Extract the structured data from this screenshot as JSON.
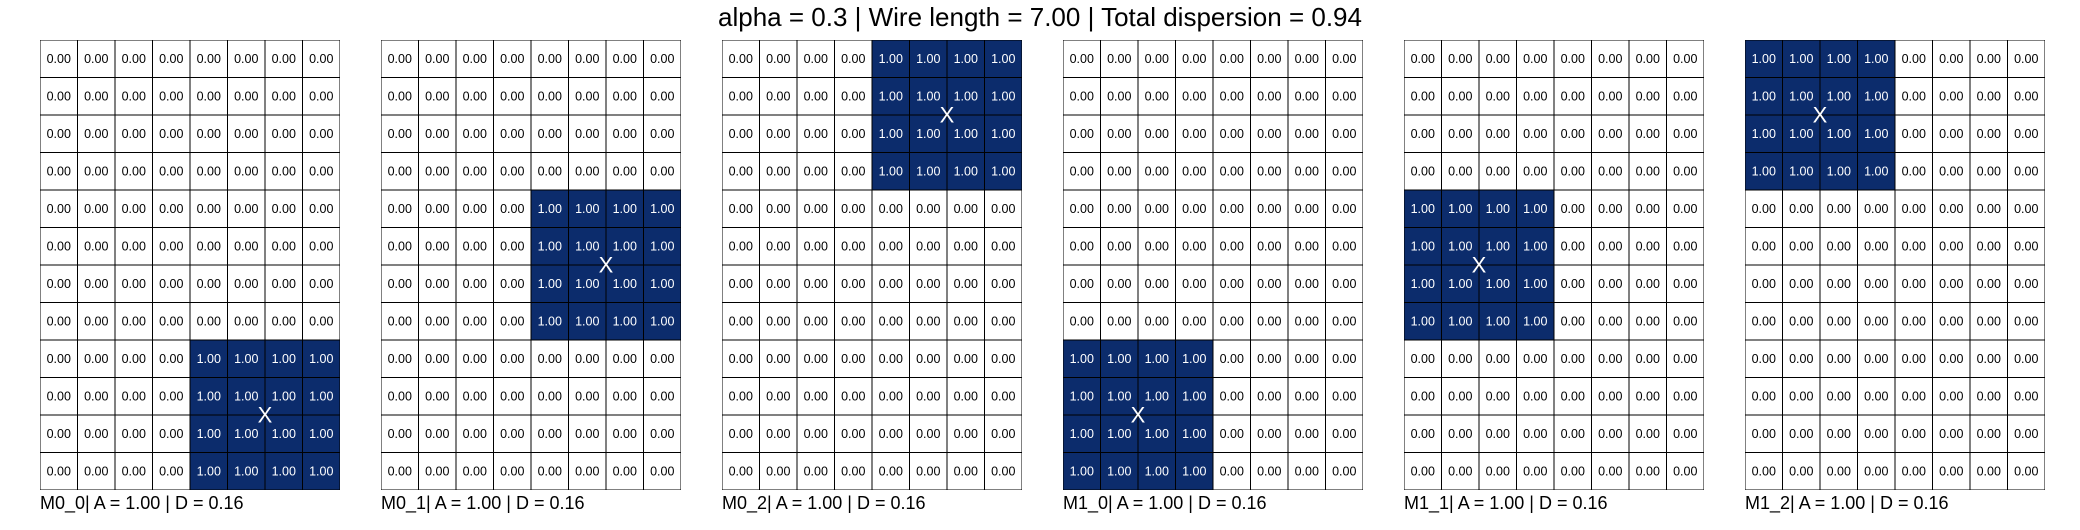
{
  "chart_data": {
    "type": "heatmap",
    "title": "alpha = 0.3 | Wire length = 7.00 | Total dispersion = 0.94",
    "alpha": 0.3,
    "wire_length": 7.0,
    "total_dispersion": 0.94,
    "grid_rows": 12,
    "grid_cols": 8,
    "colors": {
      "filled": "#0c2c6c",
      "empty": "#ffffff",
      "grid_line": "#000000",
      "filled_text": "#ffffff",
      "empty_text": "#000000"
    },
    "panels": [
      {
        "name": "M0_0",
        "label": "M0_0| A = 1.00 | D = 0.16",
        "A": 1.0,
        "D": 0.16,
        "filled": {
          "row_start": 8,
          "row_end": 11,
          "col_start": 4,
          "col_end": 7
        },
        "filled_value": "1.00",
        "empty_value": "0.00",
        "centroid_marker": "X"
      },
      {
        "name": "M0_1",
        "label": "M0_1| A = 1.00 | D = 0.16",
        "A": 1.0,
        "D": 0.16,
        "filled": {
          "row_start": 4,
          "row_end": 7,
          "col_start": 4,
          "col_end": 7
        },
        "filled_value": "1.00",
        "empty_value": "0.00",
        "centroid_marker": "X"
      },
      {
        "name": "M0_2",
        "label": "M0_2| A = 1.00 | D = 0.16",
        "A": 1.0,
        "D": 0.16,
        "filled": {
          "row_start": 0,
          "row_end": 3,
          "col_start": 4,
          "col_end": 7
        },
        "filled_value": "1.00",
        "empty_value": "0.00",
        "centroid_marker": "X"
      },
      {
        "name": "M1_0",
        "label": "M1_0| A = 1.00 | D = 0.16",
        "A": 1.0,
        "D": 0.16,
        "filled": {
          "row_start": 8,
          "row_end": 11,
          "col_start": 0,
          "col_end": 3
        },
        "filled_value": "1.00",
        "empty_value": "0.00",
        "centroid_marker": "X"
      },
      {
        "name": "M1_1",
        "label": "M1_1| A = 1.00 | D = 0.16",
        "A": 1.0,
        "D": 0.16,
        "filled": {
          "row_start": 4,
          "row_end": 7,
          "col_start": 0,
          "col_end": 3
        },
        "filled_value": "1.00",
        "empty_value": "0.00",
        "centroid_marker": "X"
      },
      {
        "name": "M1_2",
        "label": "M1_2| A = 1.00 | D = 0.16",
        "A": 1.0,
        "D": 0.16,
        "filled": {
          "row_start": 0,
          "row_end": 3,
          "col_start": 0,
          "col_end": 3
        },
        "filled_value": "1.00",
        "empty_value": "0.00",
        "centroid_marker": "X"
      }
    ]
  }
}
